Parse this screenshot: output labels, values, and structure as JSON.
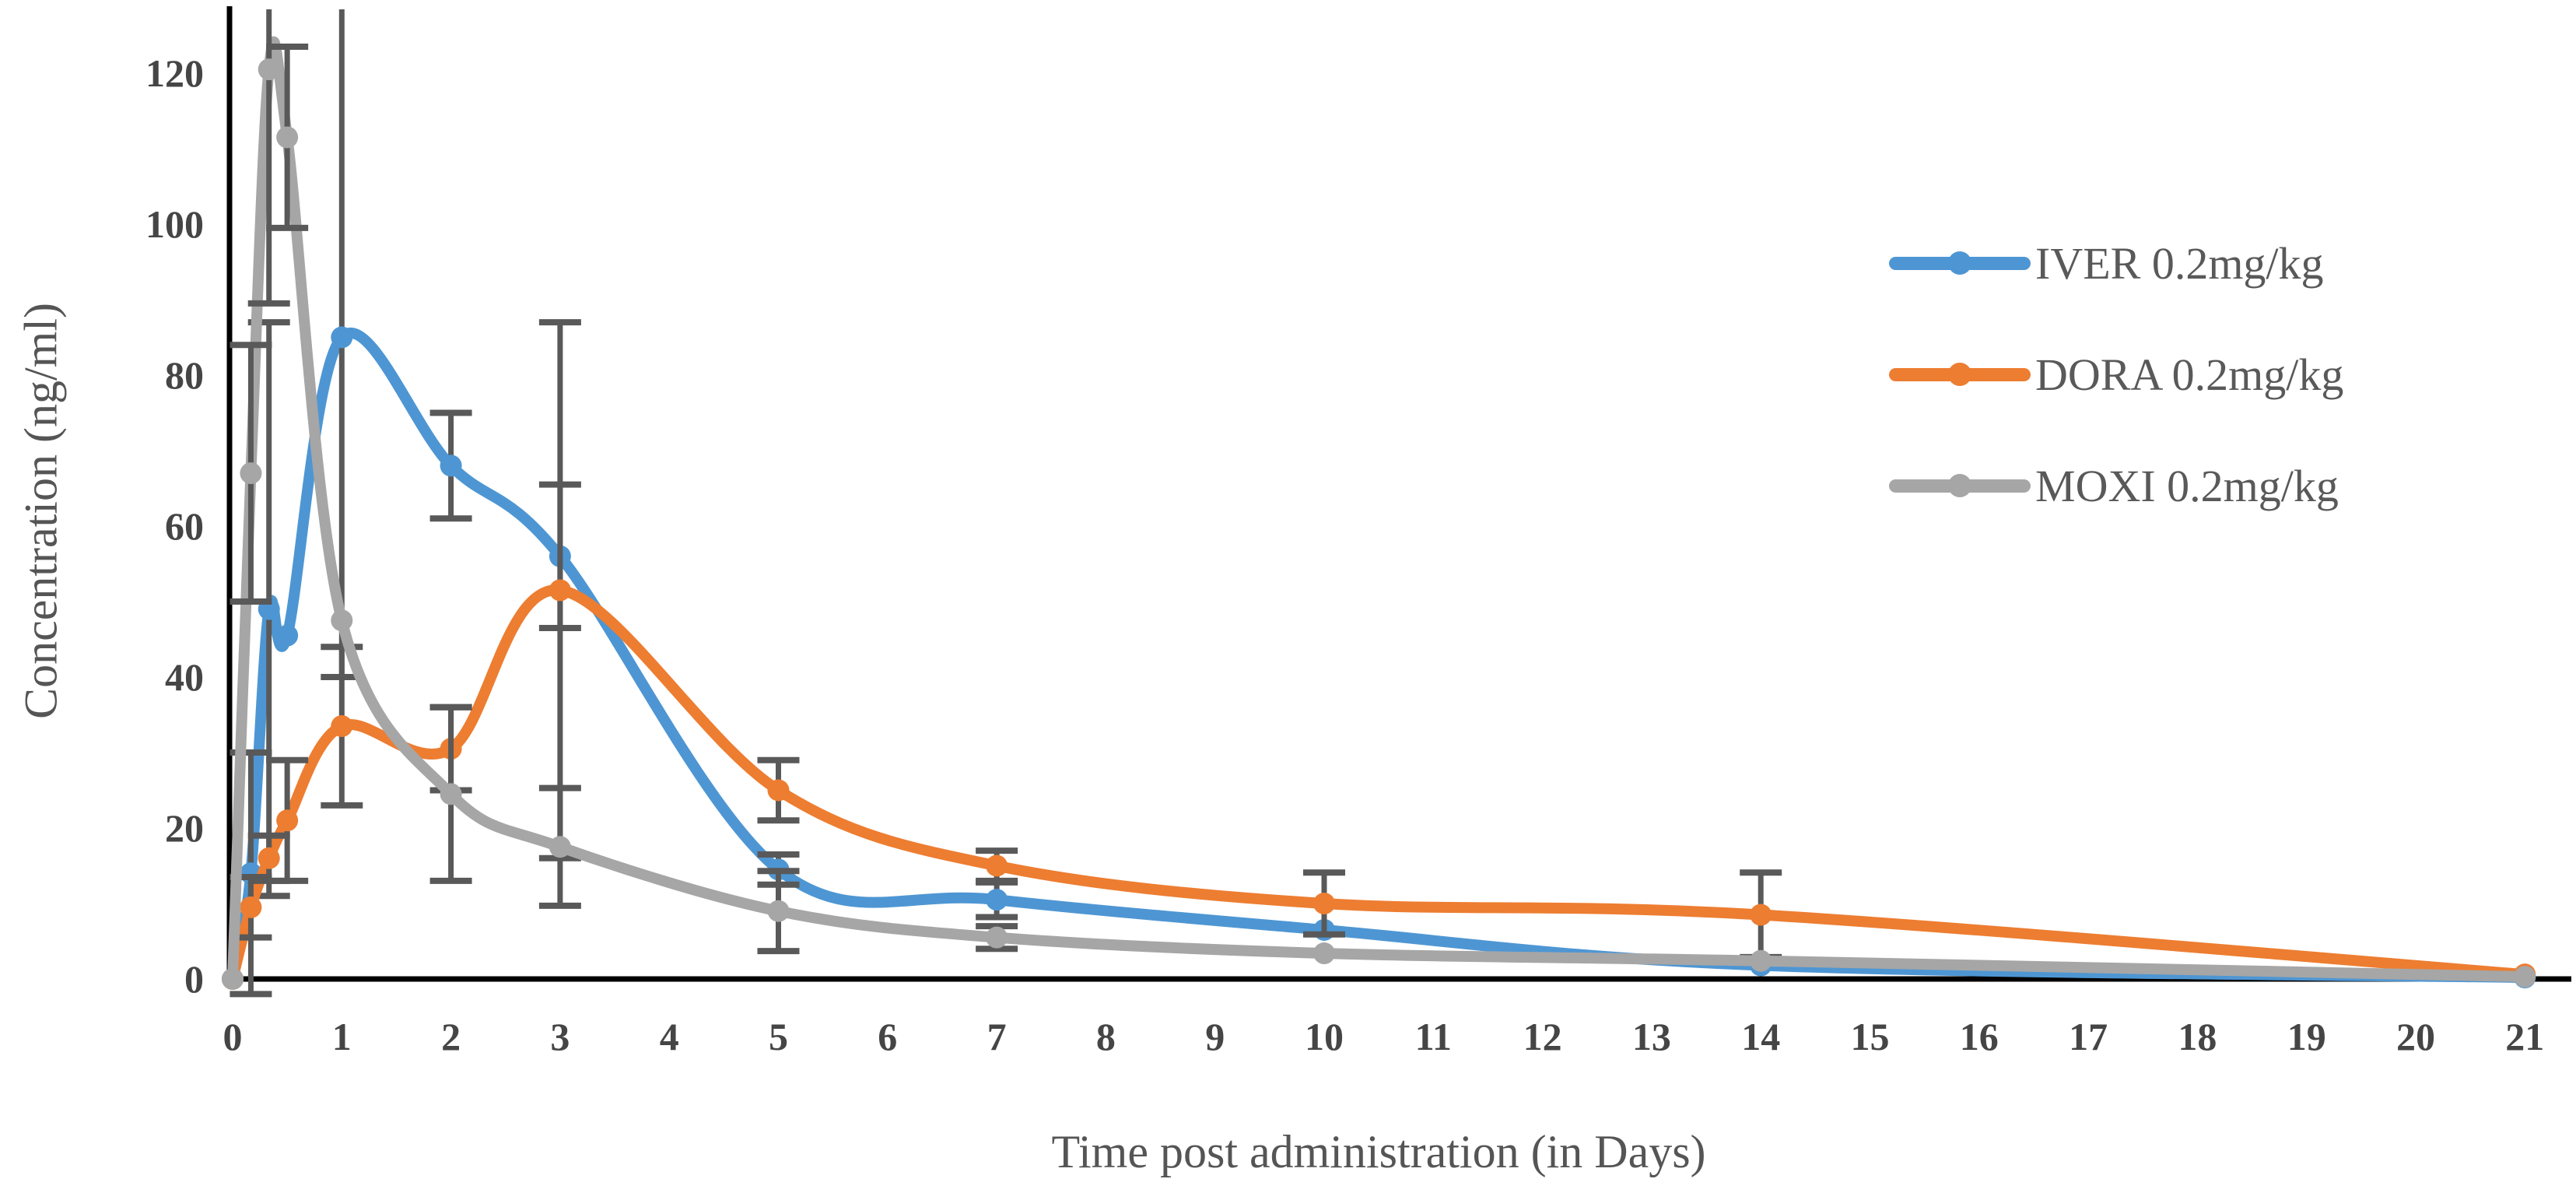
{
  "figure": {
    "background": "#ffffff",
    "axis_color": "#000000",
    "tick_label_color": "#454545",
    "title_color": "#555555",
    "error_bar_color": "#595959"
  },
  "axes": {
    "x_title": "Time post administration (in Days)",
    "y_title": "Concentration (ng/ml)",
    "x_tick_labels": [
      "0",
      "1",
      "2",
      "3",
      "4",
      "5",
      "6",
      "7",
      "8",
      "9",
      "10",
      "11",
      "12",
      "13",
      "14",
      "15",
      "16",
      "17",
      "18",
      "19",
      "20",
      "21"
    ],
    "y_tick_labels": [
      "0",
      "20",
      "40",
      "60",
      "80",
      "100",
      "120"
    ]
  },
  "legend": {
    "items": [
      {
        "label": "IVER 0.2mg/kg",
        "color": "#4E96D3"
      },
      {
        "label": "DORA 0.2mg/kg",
        "color": "#ED7D31"
      },
      {
        "label": "MOXI 0.2mg/kg",
        "color": "#A6A6A6"
      }
    ]
  },
  "chart_data": {
    "type": "line",
    "title": "",
    "xlabel": "Time post administration (in Days)",
    "ylabel": "Concentration (ng/ml)",
    "xlim": [
      0,
      21
    ],
    "ylim": [
      0,
      120
    ],
    "grid": false,
    "legend_position": "right",
    "x_ticks": [
      0,
      1,
      2,
      3,
      4,
      5,
      6,
      7,
      8,
      9,
      10,
      11,
      12,
      13,
      14,
      15,
      16,
      17,
      18,
      19,
      20,
      21
    ],
    "y_ticks": [
      0,
      20,
      40,
      60,
      80,
      100,
      120
    ],
    "x": [
      0,
      0.167,
      0.333,
      0.5,
      1,
      2,
      3,
      5,
      7,
      10,
      14,
      21
    ],
    "series": [
      {
        "name": "IVER 0.2mg/kg",
        "color": "#4E96D3",
        "marker": "circle",
        "smooth": true,
        "values": [
          0,
          14,
          49,
          45.5,
          85,
          68,
          56,
          14.5,
          10.5,
          6.5,
          1.8,
          0.2
        ],
        "errors": [
          0,
          16,
          38,
          0,
          45,
          7,
          9.5,
          2,
          2.3,
          0,
          0,
          0
        ]
      },
      {
        "name": "DORA 0.2mg/kg",
        "color": "#ED7D31",
        "marker": "circle",
        "smooth": true,
        "values": [
          0,
          9.5,
          16,
          21,
          33.5,
          30.5,
          51.5,
          25,
          15,
          10,
          8.5,
          0.6
        ],
        "errors": [
          0,
          4,
          3,
          8,
          10.5,
          5.5,
          35.5,
          4,
          2,
          4.1,
          5.6,
          0
        ]
      },
      {
        "name": "MOXI 0.2mg/kg",
        "color": "#A6A6A6",
        "marker": "circle",
        "smooth": true,
        "values": [
          0,
          67,
          120.5,
          111.5,
          47.5,
          24.5,
          17.5,
          9,
          5.5,
          3.4,
          2.4,
          0.3
        ],
        "errors": [
          0,
          17,
          31,
          12,
          0,
          11.5,
          7.8,
          5.3,
          1.5,
          0,
          0,
          0
        ]
      }
    ]
  }
}
